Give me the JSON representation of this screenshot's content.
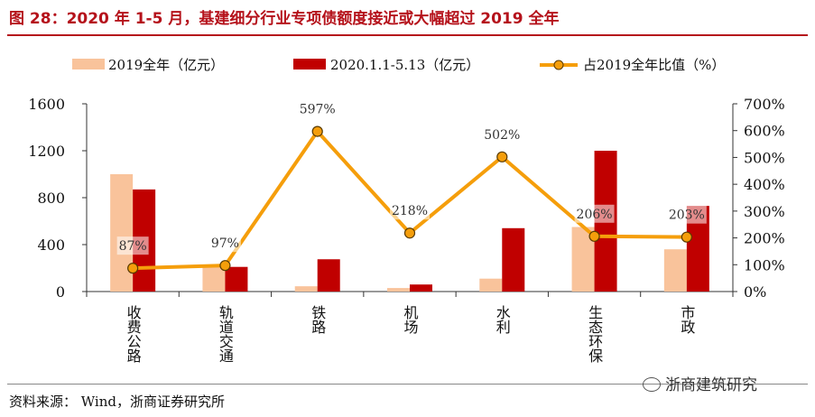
{
  "title": "图 28：2020 年 1-5 月，基建细分行业专项债额度接近或大幅超过 2019 全年",
  "source": "资料来源：   Wind，浙商证券研究所",
  "watermark": "浙商建筑研究",
  "colors": {
    "series1": "#f9c39b",
    "series2": "#c00000",
    "line": "#f59e0b",
    "marker": "#f59e0b",
    "title": "#b5121b"
  },
  "chart_data": {
    "type": "bar",
    "categories": [
      "收费公路",
      "轨道交通",
      "铁路",
      "机场",
      "水利",
      "生态环保",
      "市政"
    ],
    "series": [
      {
        "name": "2019全年（亿元）",
        "type": "bar",
        "axis": "left",
        "values": [
          1000,
          220,
          45,
          30,
          110,
          550,
          360
        ]
      },
      {
        "name": "2020.1.1-5.13（亿元）",
        "type": "bar",
        "axis": "left",
        "values": [
          870,
          210,
          275,
          60,
          540,
          1200,
          730
        ]
      },
      {
        "name": "占2019全年比值（%）",
        "type": "line",
        "axis": "right",
        "values": [
          87,
          97,
          597,
          218,
          502,
          206,
          203
        ],
        "labels": [
          "87%",
          "97%",
          "597%",
          "218%",
          "502%",
          "206%",
          "203%"
        ]
      }
    ],
    "left_axis": {
      "min": 0,
      "max": 1600,
      "ticks": [
        0,
        400,
        800,
        1200,
        1600
      ]
    },
    "right_axis": {
      "min": 0,
      "max": 700,
      "ticks": [
        "0%",
        "100%",
        "200%",
        "300%",
        "400%",
        "500%",
        "600%",
        "700%"
      ]
    },
    "legend_position": "top"
  }
}
